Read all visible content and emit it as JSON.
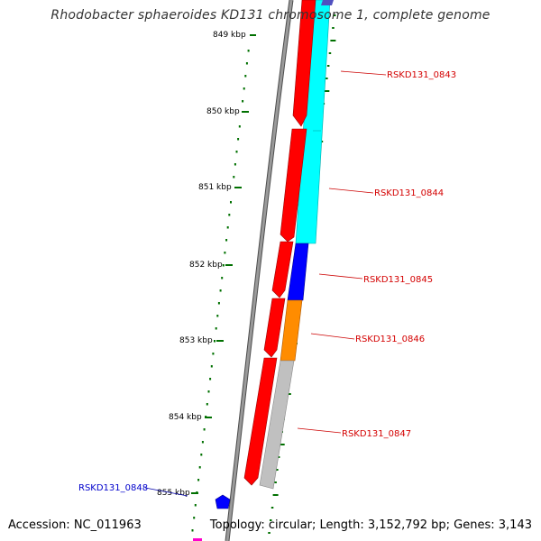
{
  "title": "Rhodobacter sphaeroides KD131 chromosome 1, complete genome",
  "footer": {
    "accession": "Accession: NC_011963",
    "summary": "Topology: circular; Length: 3,152,792 bp; Genes: 3,143"
  },
  "ticks": [
    "849 kbp",
    "850 kbp",
    "851 kbp",
    "852 kbp",
    "853 kbp",
    "854 kbp",
    "855 kbp"
  ],
  "genes": [
    {
      "label": "RSKD131_0843",
      "color": "#d40000"
    },
    {
      "label": "RSKD131_0844",
      "color": "#d40000"
    },
    {
      "label": "RSKD131_0845",
      "color": "#d40000"
    },
    {
      "label": "RSKD131_0846",
      "color": "#d40000"
    },
    {
      "label": "RSKD131_0847",
      "color": "#d40000"
    },
    {
      "label": "RSKD131_0848",
      "color": "#0000cc"
    }
  ],
  "colors": {
    "cds": "#ff0000",
    "cyan_feature": "#00ffff",
    "blue_feature": "#0000ff",
    "orange_feature": "#ff8c00",
    "gray_feature": "#c0c0c0",
    "backbone": "#888888",
    "tick": "#007000"
  }
}
